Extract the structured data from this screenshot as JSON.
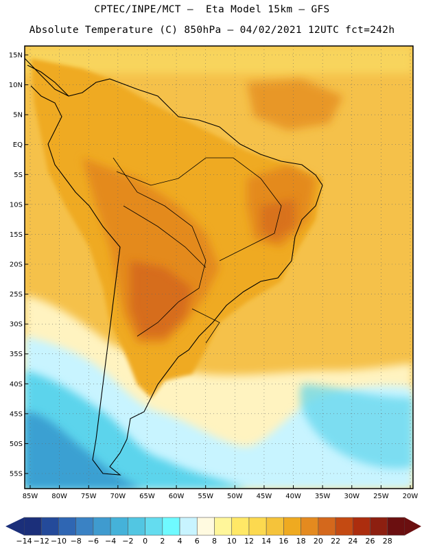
{
  "header": {
    "line1": "CPTEC/INPE/MCT –  Eta Model 15km – GFS",
    "line2": "Absolute Temperature (C) 850hPa – 04/02/2021 12UTC fct=242h"
  },
  "map": {
    "lat_ticks": [
      "15N",
      "10N",
      "5N",
      "EQ",
      "5S",
      "10S",
      "15S",
      "20S",
      "25S",
      "30S",
      "35S",
      "40S",
      "45S",
      "50S",
      "55S"
    ],
    "lon_ticks": [
      "85W",
      "80W",
      "75W",
      "70W",
      "65W",
      "60W",
      "55W",
      "50W",
      "45W",
      "40W",
      "35W",
      "30W",
      "25W",
      "20W"
    ],
    "colors": {
      "ocean_warm": "#f5c14a",
      "land_warm": "#efaa20",
      "hot": "#e48a1f",
      "very_hot": "#d4681c",
      "mild": "#fbe26a",
      "pale": "#fff3c0",
      "cool": "#c8f4ff",
      "cold": "#5cd4ec",
      "colder": "#3aa0d2"
    }
  },
  "colorbar": {
    "labels": [
      "-14",
      "-12",
      "-10",
      "-8",
      "-6",
      "-4",
      "-2",
      "0",
      "2",
      "4",
      "6",
      "8",
      "10",
      "12",
      "14",
      "16",
      "18",
      "20",
      "22",
      "24",
      "26",
      "28"
    ],
    "colors": [
      "#1b2f7a",
      "#244a9a",
      "#2f66b3",
      "#3a82c4",
      "#3f9bcf",
      "#45b2d9",
      "#52c6e2",
      "#64dcef",
      "#6ffaff",
      "#c8f4ff",
      "#fffae0",
      "#fff69a",
      "#ffe866",
      "#fcd94f",
      "#f5c33a",
      "#efaa20",
      "#e48a1f",
      "#d4681c",
      "#c44a12",
      "#ac2d0e",
      "#8d1f10",
      "#6b0f10"
    ],
    "left_arrow_color": "#1b2f7a",
    "right_arrow_color": "#6b0f10"
  }
}
